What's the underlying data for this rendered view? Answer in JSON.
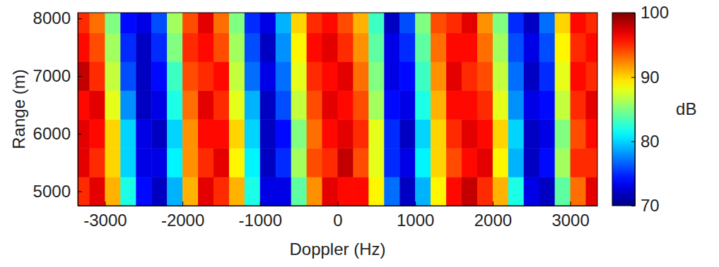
{
  "chart_data": {
    "type": "heatmap",
    "x_label": "Doppler (Hz)",
    "y_label": "Range (m)",
    "x": [
      -3300,
      -3100,
      -2900,
      -2700,
      -2500,
      -2300,
      -2100,
      -1900,
      -1700,
      -1500,
      -1300,
      -1100,
      -900,
      -700,
      -500,
      -300,
      -100,
      100,
      300,
      500,
      700,
      900,
      1100,
      1300,
      1500,
      1700,
      1900,
      2100,
      2300,
      2500,
      2700,
      2900,
      3100,
      3300
    ],
    "y": [
      5000,
      5500,
      6000,
      6500,
      7000,
      7500,
      8000
    ],
    "z": [
      [
        95,
        97,
        91,
        82,
        74,
        72,
        79,
        91,
        97,
        95,
        91,
        82,
        73,
        73,
        84,
        92,
        97,
        96,
        96,
        89,
        77,
        72,
        79,
        89,
        96,
        98,
        95,
        91,
        82,
        73,
        72,
        84,
        93,
        97
      ],
      [
        97,
        95,
        90,
        80,
        73,
        73,
        81,
        92,
        95,
        97,
        89,
        81,
        72,
        75,
        86,
        94,
        95,
        98,
        94,
        88,
        75,
        73,
        81,
        90,
        94,
        96,
        97,
        89,
        79,
        72,
        74,
        86,
        95,
        95
      ],
      [
        97,
        96,
        90,
        80,
        73,
        72,
        80,
        92,
        96,
        96,
        90,
        80,
        72,
        74,
        85,
        93,
        96,
        97,
        95,
        88,
        75,
        72,
        80,
        90,
        95,
        97,
        96,
        90,
        80,
        72,
        73,
        85,
        94,
        96
      ],
      [
        96,
        97,
        88,
        78,
        72,
        73,
        82,
        93,
        97,
        95,
        88,
        79,
        72,
        76,
        87,
        94,
        97,
        96,
        94,
        86,
        74,
        73,
        82,
        91,
        96,
        96,
        95,
        88,
        78,
        73,
        74,
        87,
        95,
        97
      ],
      [
        98,
        95,
        87,
        76,
        72,
        74,
        83,
        94,
        95,
        96,
        87,
        77,
        73,
        77,
        88,
        95,
        96,
        97,
        93,
        85,
        73,
        74,
        83,
        92,
        97,
        95,
        94,
        87,
        77,
        72,
        75,
        88,
        96,
        95
      ],
      [
        96,
        94,
        86,
        75,
        72,
        75,
        85,
        95,
        96,
        94,
        86,
        76,
        72,
        78,
        89,
        96,
        97,
        95,
        92,
        84,
        73,
        75,
        84,
        93,
        96,
        96,
        93,
        86,
        76,
        73,
        76,
        89,
        95,
        96
      ],
      [
        95,
        93,
        85,
        74,
        73,
        76,
        86,
        94,
        97,
        93,
        85,
        75,
        73,
        79,
        90,
        95,
        96,
        94,
        91,
        83,
        72,
        76,
        85,
        94,
        95,
        97,
        92,
        85,
        75,
        72,
        77,
        90,
        96,
        95
      ]
    ],
    "xlim": [
      -3350,
      3350
    ],
    "ylim": [
      4750,
      8100
    ],
    "xticks": [
      -3000,
      -2000,
      -1000,
      0,
      1000,
      2000,
      3000
    ],
    "yticks": [
      5000,
      6000,
      7000,
      8000
    ],
    "colorbar": {
      "label": "dB",
      "range": [
        70,
        100
      ],
      "ticks": [
        70,
        80,
        90,
        100
      ]
    }
  }
}
